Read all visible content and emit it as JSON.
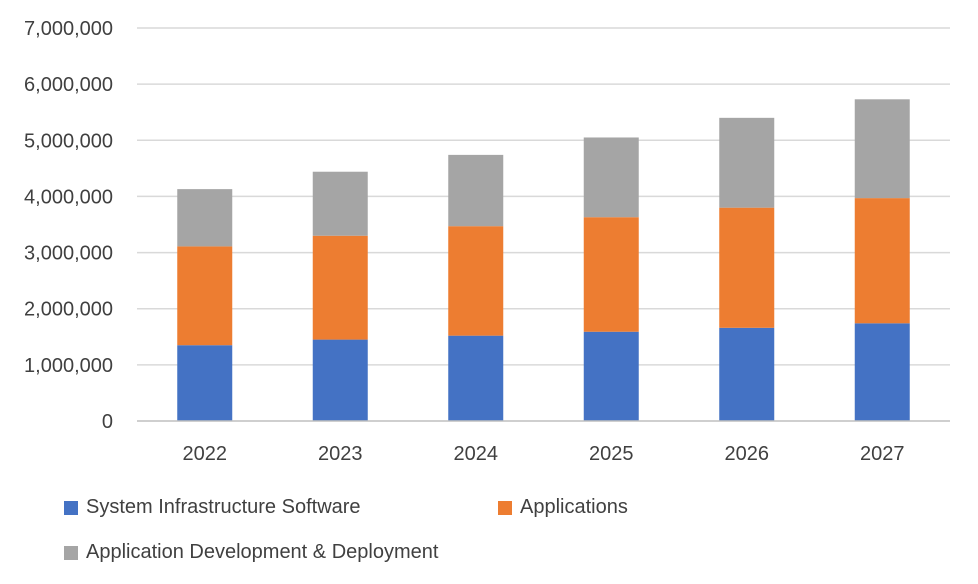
{
  "chart_data": {
    "type": "bar",
    "stacked": true,
    "categories": [
      "2022",
      "2023",
      "2024",
      "2025",
      "2026",
      "2027"
    ],
    "series": [
      {
        "name": "System Infrastructure Software",
        "color": "#4472C4",
        "values": [
          1350000,
          1450000,
          1520000,
          1590000,
          1660000,
          1740000
        ]
      },
      {
        "name": "Applications",
        "color": "#ED7D31",
        "values": [
          1760000,
          1850000,
          1950000,
          2040000,
          2140000,
          2230000
        ]
      },
      {
        "name": "Application Development & Deployment",
        "color": "#A5A5A5",
        "values": [
          1020000,
          1140000,
          1270000,
          1420000,
          1600000,
          1760000
        ]
      }
    ],
    "ylim": [
      0,
      7000000
    ],
    "yticks": [
      "0",
      "1,000,000",
      "2,000,000",
      "3,000,000",
      "4,000,000",
      "5,000,000",
      "6,000,000",
      "7,000,000"
    ],
    "ytick_values": [
      0,
      1000000,
      2000000,
      3000000,
      4000000,
      5000000,
      6000000,
      7000000
    ],
    "grid": true,
    "legend_position": "bottom",
    "gridline_color": "#D9D9D9",
    "axis_line_color": "#BFBFBF"
  }
}
